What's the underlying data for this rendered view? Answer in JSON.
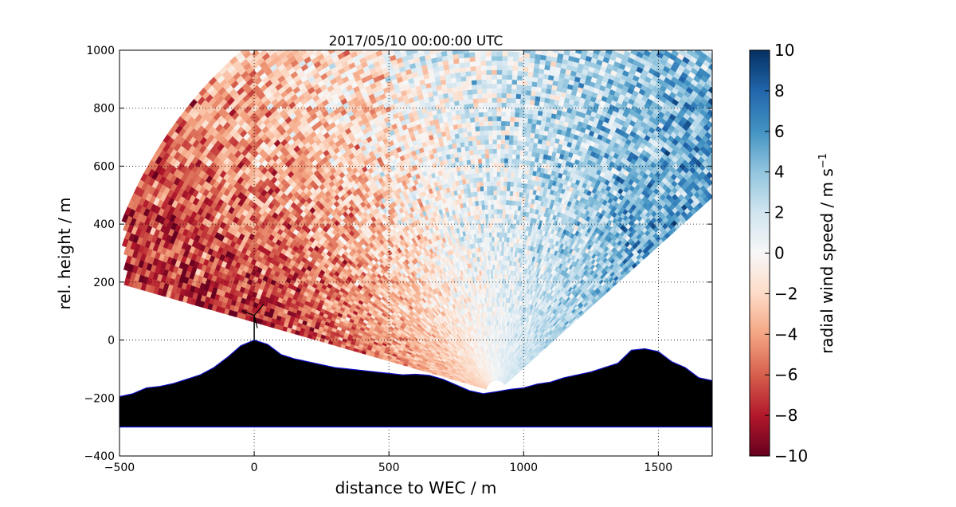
{
  "chart_data": {
    "type": "heatmap",
    "title": "2017/05/10 00:00:00 UTC",
    "xlabel": "distance to WEC / m",
    "ylabel": "rel. height / m",
    "xlim": [
      -500,
      1700
    ],
    "ylim": [
      -400,
      1000
    ],
    "xticks": [
      "−500",
      "0",
      "500",
      "1000",
      "1500"
    ],
    "yticks": [
      "−400",
      "−200",
      "0",
      "200",
      "400",
      "600",
      "800",
      "1000"
    ],
    "xtick_values": [
      -500,
      0,
      500,
      1000,
      1500
    ],
    "ytick_values": [
      -400,
      -200,
      0,
      200,
      400,
      600,
      800,
      1000
    ],
    "grid": true,
    "colormap": "RdBu",
    "colorbar": {
      "label": "radial wind speed / m s",
      "label_superscript": "−1",
      "range": [
        -10,
        10
      ],
      "ticks": [
        "−10",
        "−8",
        "−6",
        "−4",
        "−2",
        "0",
        "2",
        "4",
        "6",
        "8",
        "10"
      ],
      "tick_values": [
        -10,
        -8,
        -6,
        -4,
        -2,
        0,
        2,
        4,
        6,
        8,
        10
      ]
    },
    "scan_origin": [
      900,
      -180
    ],
    "scan_angle_range_deg": [
      40,
      165
    ],
    "terrain_profile": {
      "x": [
        -500,
        -450,
        -400,
        -350,
        -300,
        -250,
        -200,
        -150,
        -100,
        -50,
        0,
        50,
        100,
        150,
        200,
        250,
        300,
        350,
        400,
        450,
        500,
        550,
        600,
        650,
        700,
        750,
        800,
        850,
        900,
        950,
        1000,
        1050,
        1100,
        1150,
        1200,
        1250,
        1300,
        1350,
        1400,
        1450,
        1500,
        1550,
        1600,
        1650,
        1700
      ],
      "y": [
        -195,
        -185,
        -165,
        -160,
        -150,
        -135,
        -120,
        -95,
        -60,
        -20,
        0,
        -15,
        -50,
        -65,
        -75,
        -85,
        -95,
        -100,
        -105,
        -110,
        -115,
        -120,
        -118,
        -122,
        -135,
        -155,
        -175,
        -185,
        -178,
        -170,
        -165,
        -152,
        -145,
        -130,
        -120,
        -110,
        -95,
        -80,
        -35,
        -30,
        -40,
        -75,
        -95,
        -130,
        -140
      ],
      "bottom": -300,
      "fill_color": "#000000",
      "edge_color": "#1010c8"
    },
    "turbine": {
      "x": 0,
      "hub_height": 85
    },
    "colors": {
      "neg_max": "#67001f",
      "neg_mid": "#d6604d",
      "neutral": "#f7f7f7",
      "pos_mid": "#4393c3",
      "pos_max": "#053061"
    }
  }
}
